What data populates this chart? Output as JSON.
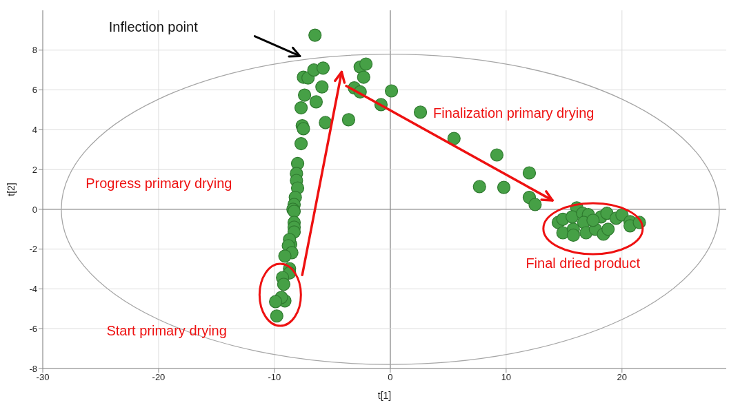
{
  "chart_data": {
    "type": "scatter",
    "xlabel": "t[1]",
    "ylabel": "t[2]",
    "xlim": [
      -30,
      29
    ],
    "ylim": [
      -8,
      10
    ],
    "xticks": [
      -30,
      -20,
      -10,
      0,
      10,
      20
    ],
    "yticks": [
      -8,
      -6,
      -4,
      -2,
      0,
      2,
      4,
      6,
      8
    ],
    "grid": true,
    "marker": "circle",
    "series": [
      {
        "color": "#46a046",
        "x": [
          -6.5,
          -7.5,
          -7.1,
          -6.6,
          -5.8,
          -5.9,
          -7.4,
          -6.4,
          -7.7,
          -5.6,
          -7.6,
          -7.5,
          -7.7,
          -3.6,
          -2.6,
          -2.1,
          -2.3,
          -3.1,
          -2.6,
          -0.8,
          0.1,
          2.6,
          5.5,
          9.2,
          12.0,
          7.7,
          9.8,
          12.0,
          12.5,
          16.1,
          14.5,
          14.9,
          15.7,
          14.9,
          15.8,
          15.8,
          16.6,
          17.1,
          16.7,
          16.9,
          17.7,
          18.2,
          18.7,
          18.4,
          18.8,
          19.5,
          20.0,
          20.7,
          20.7,
          21.5,
          17.5,
          -8.0,
          -8.1,
          -8.1,
          -8.0,
          -8.2,
          -8.3,
          -8.4,
          -8.3,
          -8.3,
          -8.3,
          -8.3,
          -8.6,
          -8.7,
          -8.8,
          -8.5,
          -9.1,
          -8.7,
          -8.7,
          -9.3,
          -9.2,
          -9.1,
          -9.4,
          -9.9,
          -9.8
        ],
        "values": [
          8.75,
          6.64,
          6.6,
          7.0,
          7.1,
          6.15,
          5.74,
          5.4,
          5.1,
          4.36,
          4.2,
          4.05,
          3.3,
          4.5,
          7.15,
          7.3,
          6.64,
          6.1,
          5.9,
          5.26,
          5.95,
          4.88,
          3.56,
          2.73,
          1.83,
          1.14,
          1.1,
          0.6,
          0.24,
          0.07,
          -0.66,
          -0.5,
          -0.38,
          -1.18,
          -1.0,
          -1.3,
          -0.2,
          -0.27,
          -0.66,
          -1.18,
          -1.0,
          -0.38,
          -0.2,
          -1.25,
          -1.0,
          -0.45,
          -0.28,
          -0.62,
          -0.83,
          -0.66,
          -0.55,
          2.3,
          1.8,
          1.45,
          1.07,
          0.6,
          0.24,
          0,
          -0.1,
          -0.66,
          -0.9,
          -1.14,
          -1.76,
          -1.52,
          -1.83,
          -2.18,
          -2.35,
          -2.98,
          -3.2,
          -3.43,
          -3.77,
          -4.6,
          -4.43,
          -4.64,
          -5.36
        ]
      }
    ],
    "annotations": [
      "Inflection point",
      "Progress primary drying",
      "Start primary drying",
      "Finalization primary drying",
      "Final dried product"
    ]
  }
}
